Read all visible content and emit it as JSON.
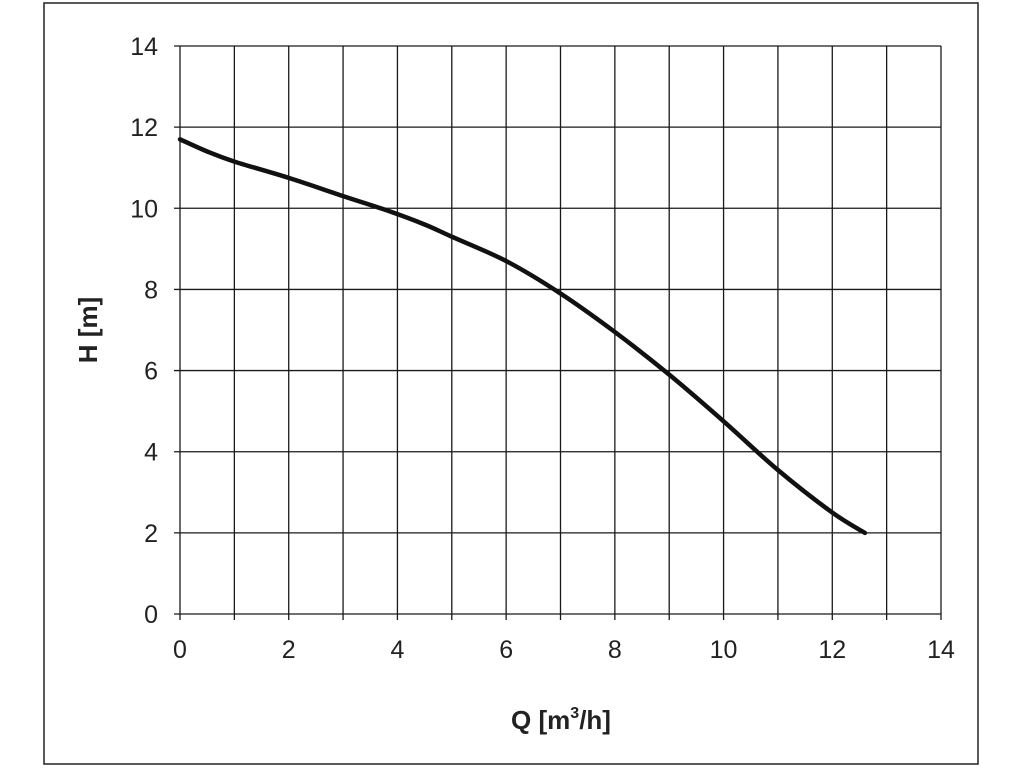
{
  "chart_data": {
    "type": "line",
    "title": "",
    "xlabel": {
      "prefix": "Q [m",
      "superscript": "3",
      "suffix": "/h]"
    },
    "ylabel": "H [m]",
    "xlim": [
      0,
      14
    ],
    "ylim": [
      0,
      14
    ],
    "x_ticks": [
      0,
      2,
      4,
      6,
      8,
      10,
      12,
      14
    ],
    "y_ticks": [
      0,
      2,
      4,
      6,
      8,
      10,
      12,
      14
    ],
    "x_grid_step": 1,
    "y_grid_step": 2,
    "grid": true,
    "legend": "none",
    "line_color": "#111111",
    "grid_color": "#1a1a1a",
    "series": [
      {
        "x": [
          0,
          0.5,
          1,
          2,
          3,
          3.8,
          4.5,
          5,
          6,
          7,
          8,
          9,
          10,
          11,
          12,
          12.6
        ],
        "y": [
          11.7,
          11.4,
          11.15,
          10.75,
          10.3,
          9.95,
          9.6,
          9.3,
          8.7,
          7.9,
          6.95,
          5.9,
          4.75,
          3.55,
          2.5,
          2.0
        ]
      }
    ]
  }
}
